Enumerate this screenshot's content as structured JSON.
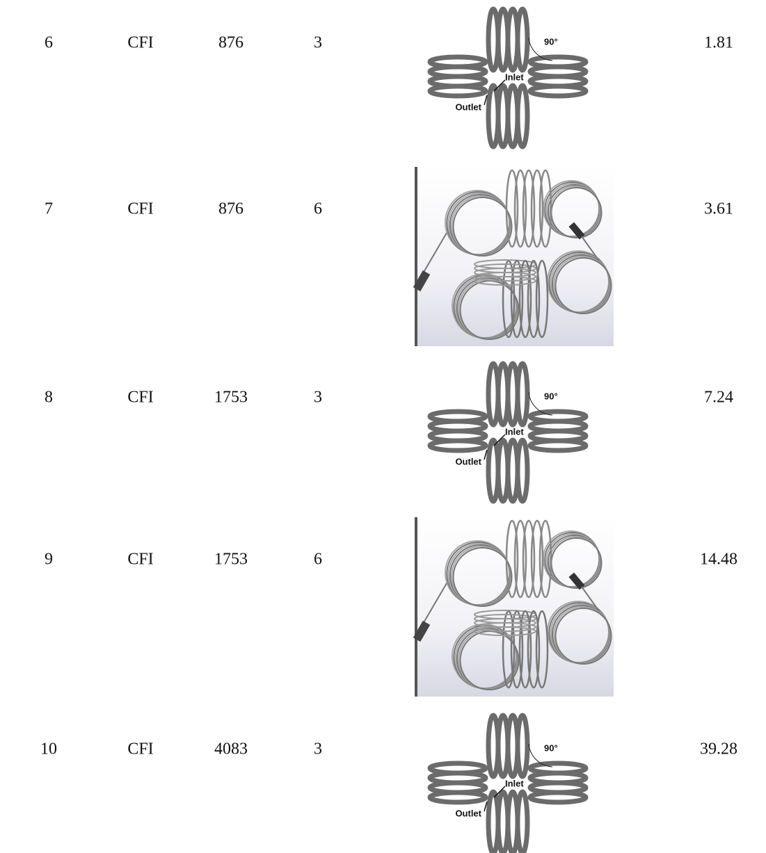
{
  "table": {
    "rows": [
      {
        "cells": [
          "6",
          "CFI",
          "876",
          "3",
          "1.81"
        ],
        "figure": {
          "angle": "90°",
          "inlet": "Inlet",
          "outlet": "Outlet"
        }
      },
      {
        "cells": [
          "7",
          "CFI",
          "876",
          "6",
          "3.61"
        ]
      },
      {
        "cells": [
          "8",
          "CFI",
          "1753",
          "3",
          "7.24"
        ],
        "figure": {
          "angle": "90°",
          "inlet": "Inlet",
          "outlet": "Outlet"
        }
      },
      {
        "cells": [
          "9",
          "CFI",
          "1753",
          "6",
          "14.48"
        ]
      },
      {
        "cells": [
          "10",
          "CFI",
          "4083",
          "3",
          "39.28"
        ],
        "figure": {
          "angle": "90°",
          "inlet": "Inlet",
          "outlet": "Outlet"
        }
      }
    ]
  }
}
